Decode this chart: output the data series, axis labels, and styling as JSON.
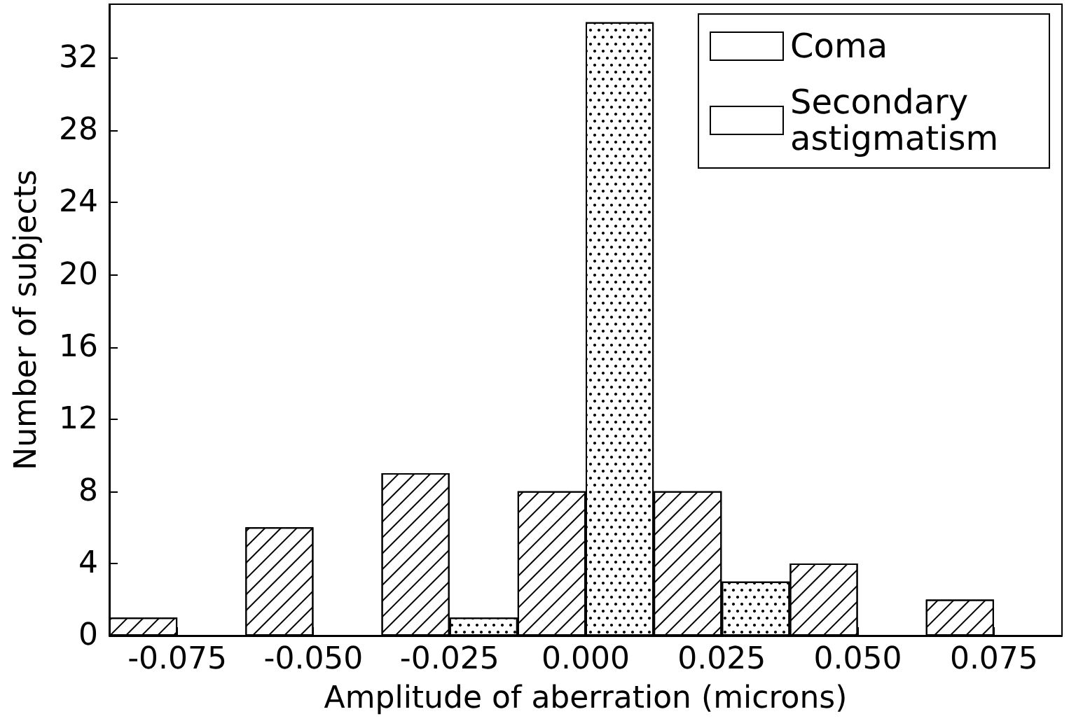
{
  "chart_data": {
    "type": "bar",
    "xlabel": "Amplitude of aberration (microns)",
    "ylabel": "Number of subjects",
    "categories": [
      "-0.075",
      "-0.050",
      "-0.025",
      "0.000",
      "0.025",
      "0.050",
      "0.075"
    ],
    "series": [
      {
        "name": "Coma",
        "color": "#ffffff",
        "values": [
          1,
          6,
          9,
          8,
          8,
          4,
          2
        ]
      },
      {
        "name": "Secondary astigmatism",
        "color": "#ffffff",
        "values": [
          0,
          0,
          1,
          34,
          3,
          0,
          0
        ]
      }
    ],
    "ylim": [
      0,
      35
    ],
    "yticks": [
      0,
      4,
      8,
      12,
      16,
      20,
      24,
      28,
      32
    ],
    "grid": false,
    "legend": "top right"
  }
}
